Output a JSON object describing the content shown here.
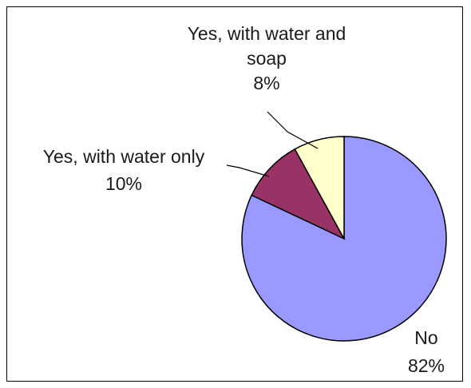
{
  "chart_data": {
    "type": "pie",
    "slices": [
      {
        "label": "No",
        "value": 82,
        "percent_label": "82%",
        "color": "#9999ff"
      },
      {
        "label": "Yes, with water only",
        "value": 10,
        "percent_label": "10%",
        "color": "#993366"
      },
      {
        "label_lines": [
          "Yes, with water and",
          "soap"
        ],
        "label": "Yes, with water and soap",
        "value": 8,
        "percent_label": "8%",
        "color": "#ffffcc"
      }
    ],
    "start_angle_deg": 0,
    "direction": "clockwise",
    "legend": "none"
  }
}
